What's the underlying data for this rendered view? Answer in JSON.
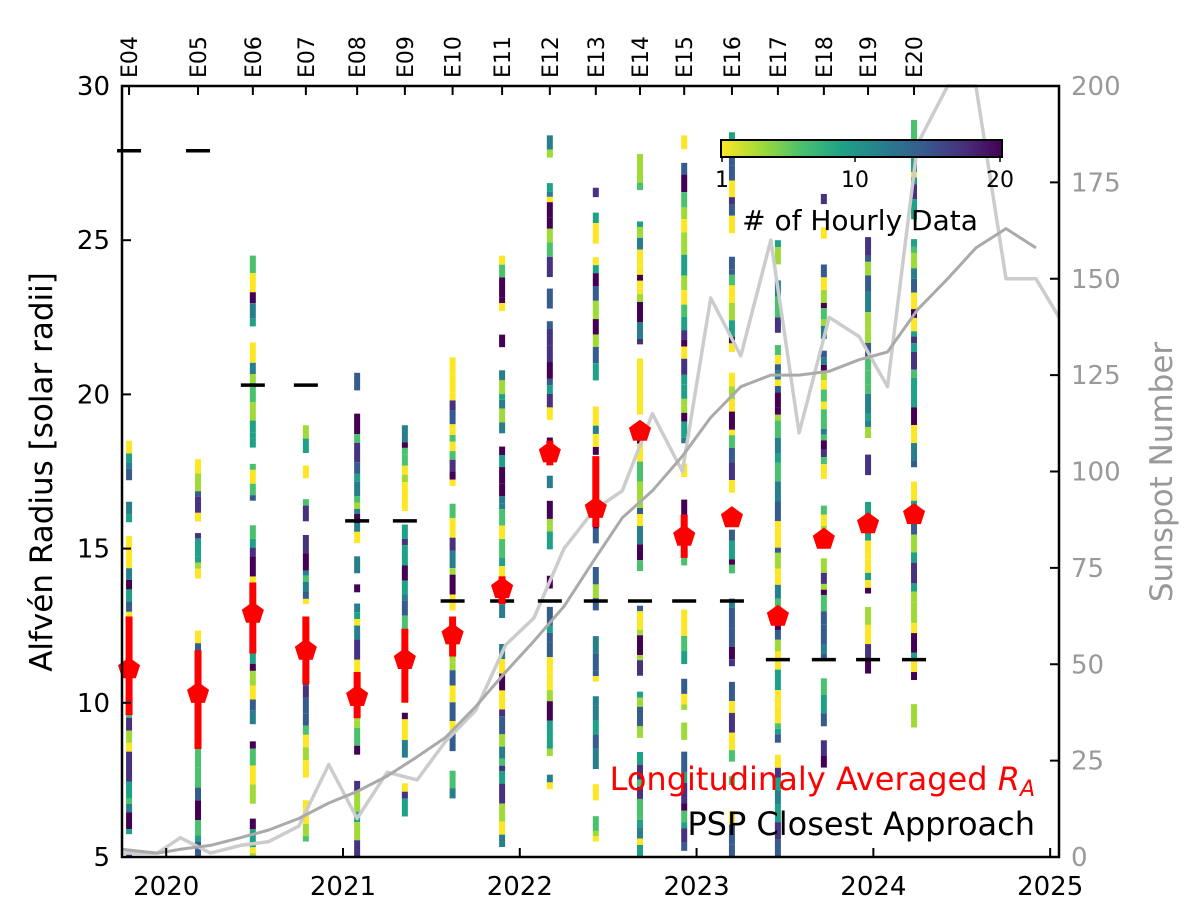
{
  "chart_data": {
    "type": "errorbar",
    "x_axis": {
      "range": [
        2019.75,
        2025.05
      ],
      "ticks": [
        2020,
        2021,
        2022,
        2023,
        2024,
        2025
      ],
      "tick_labels": [
        "2020",
        "2021",
        "2022",
        "2023",
        "2024",
        "2025"
      ]
    },
    "y_axis_left": {
      "label": "Alfvén Radius [solar radii]",
      "range": [
        5,
        30
      ],
      "ticks": [
        5,
        10,
        15,
        20,
        25,
        30
      ],
      "tick_labels": [
        "5",
        "10",
        "15",
        "20",
        "25",
        "30"
      ]
    },
    "y_axis_right": {
      "label": "Sunspot Number",
      "range": [
        0,
        200
      ],
      "ticks": [
        0,
        25,
        50,
        75,
        100,
        125,
        150,
        175,
        200
      ],
      "tick_labels": [
        "0",
        "25",
        "50",
        "75",
        "100",
        "125",
        "150",
        "175",
        "200"
      ],
      "color": "#999999"
    },
    "encounters": [
      {
        "label": "E04",
        "x": 2019.79,
        "ra": 11.1,
        "err_lo": 9.6,
        "err_hi": 12.8,
        "closest_approach": 27.9,
        "strip_lo": 5.0,
        "strip_hi": 18.5
      },
      {
        "label": "E05",
        "x": 2020.18,
        "ra": 10.3,
        "err_lo": 8.5,
        "err_hi": 11.7,
        "closest_approach": 27.9,
        "strip_lo": 5.0,
        "strip_hi": 17.9
      },
      {
        "label": "E06",
        "x": 2020.49,
        "ra": 12.9,
        "err_lo": 11.6,
        "err_hi": 13.9,
        "closest_approach": 20.3,
        "strip_lo": 5.0,
        "strip_hi": 24.5
      },
      {
        "label": "E07",
        "x": 2020.79,
        "ra": 11.7,
        "err_lo": 10.6,
        "err_hi": 12.8,
        "closest_approach": 20.3,
        "strip_lo": 5.0,
        "strip_hi": 19.0
      },
      {
        "label": "E08",
        "x": 2021.08,
        "ra": 10.2,
        "err_lo": 9.5,
        "err_hi": 11.0,
        "closest_approach": 15.9,
        "strip_lo": 5.0,
        "strip_hi": 20.7
      },
      {
        "label": "E09",
        "x": 2021.35,
        "ra": 11.4,
        "err_lo": 10.0,
        "err_hi": 12.4,
        "closest_approach": 15.9,
        "strip_lo": 5.8,
        "strip_hi": 19.0
      },
      {
        "label": "E10",
        "x": 2021.62,
        "ra": 12.2,
        "err_lo": 11.5,
        "err_hi": 12.8,
        "closest_approach": 13.3,
        "strip_lo": 6.9,
        "strip_hi": 21.2
      },
      {
        "label": "E11",
        "x": 2021.9,
        "ra": 13.7,
        "err_lo": 13.2,
        "err_hi": 14.1,
        "closest_approach": 13.3,
        "strip_lo": 5.0,
        "strip_hi": 24.5
      },
      {
        "label": "E12",
        "x": 2022.17,
        "ra": 18.1,
        "err_lo": 17.7,
        "err_hi": 18.5,
        "closest_approach": 13.3,
        "strip_lo": 7.2,
        "strip_hi": 28.4
      },
      {
        "label": "E13",
        "x": 2022.43,
        "ra": 16.3,
        "err_lo": 15.7,
        "err_hi": 18.0,
        "closest_approach": 13.3,
        "strip_lo": 5.5,
        "strip_hi": 26.7
      },
      {
        "label": "E14",
        "x": 2022.68,
        "ra": 18.8,
        "err_lo": 18.6,
        "err_hi": 19.0,
        "closest_approach": 13.3,
        "strip_lo": 5.0,
        "strip_hi": 27.8
      },
      {
        "label": "E15",
        "x": 2022.93,
        "ra": 15.4,
        "err_lo": 14.7,
        "err_hi": 16.1,
        "closest_approach": 13.3,
        "strip_lo": 5.2,
        "strip_hi": 28.4
      },
      {
        "label": "E16",
        "x": 2023.2,
        "ra": 16.0,
        "err_lo": 15.7,
        "err_hi": 16.3,
        "closest_approach": 13.3,
        "strip_lo": 5.0,
        "strip_hi": 28.5
      },
      {
        "label": "E17",
        "x": 2023.46,
        "ra": 12.8,
        "err_lo": 12.5,
        "err_hi": 13.1,
        "closest_approach": 11.4,
        "strip_lo": 5.0,
        "strip_hi": 25.0
      },
      {
        "label": "E18",
        "x": 2023.72,
        "ra": 15.3,
        "err_lo": 15.0,
        "err_hi": 15.6,
        "closest_approach": 11.4,
        "strip_lo": 7.9,
        "strip_hi": 26.5
      },
      {
        "label": "E19",
        "x": 2023.97,
        "ra": 15.8,
        "err_lo": 15.5,
        "err_hi": 16.1,
        "closest_approach": 11.4,
        "strip_lo": 10.3,
        "strip_hi": 25.1
      },
      {
        "label": "E20",
        "x": 2024.23,
        "ra": 16.1,
        "err_lo": 15.8,
        "err_hi": 16.4,
        "closest_approach": 11.4,
        "strip_lo": 9.2,
        "strip_hi": 28.9
      }
    ],
    "sunspot_monthly": {
      "color": "#cccccc",
      "x": [
        2019.75,
        2019.95,
        2020.08,
        2020.25,
        2020.42,
        2020.58,
        2020.75,
        2020.92,
        2021.08,
        2021.25,
        2021.42,
        2021.58,
        2021.75,
        2021.92,
        2022.08,
        2022.25,
        2022.42,
        2022.58,
        2022.75,
        2022.92,
        2023.08,
        2023.25,
        2023.42,
        2023.58,
        2023.75,
        2023.92,
        2024.08,
        2024.25,
        2024.42,
        2024.58,
        2024.75,
        2024.92,
        2025.05
      ],
      "y": [
        1,
        1,
        5,
        1,
        3,
        4,
        8,
        24,
        10,
        22,
        20,
        30,
        38,
        55,
        62,
        80,
        90,
        95,
        115,
        100,
        145,
        130,
        160,
        110,
        140,
        135,
        122,
        185,
        205,
        215,
        150,
        150,
        140
      ]
    },
    "sunspot_smoothed": {
      "color": "#aaaaaa",
      "x": [
        2019.75,
        2019.95,
        2020.08,
        2020.25,
        2020.42,
        2020.58,
        2020.75,
        2020.92,
        2021.08,
        2021.25,
        2021.42,
        2021.58,
        2021.75,
        2021.92,
        2022.08,
        2022.25,
        2022.42,
        2022.58,
        2022.75,
        2022.92,
        2023.08,
        2023.25,
        2023.42,
        2023.58,
        2023.75,
        2023.92,
        2024.08,
        2024.25,
        2024.42,
        2024.58,
        2024.75,
        2024.92
      ],
      "y": [
        2,
        1,
        2,
        3,
        5,
        7,
        10,
        14,
        17,
        21,
        26,
        31,
        39,
        48,
        56,
        65,
        77,
        88,
        95,
        104,
        114,
        122,
        125,
        125,
        126,
        129,
        131,
        142,
        150,
        158,
        163,
        158
      ]
    },
    "colorbar": {
      "label": "# of Hourly Data",
      "tick_labels": [
        "1",
        "10",
        "20"
      ],
      "colors": [
        "#fde725",
        "#a0da39",
        "#4ac16d",
        "#1fa187",
        "#277f8e",
        "#365c8d",
        "#46327e",
        "#440154"
      ]
    },
    "legend": [
      {
        "label": "Longitudinaly Averaged ",
        "label_math": "R",
        "label_sub": "A",
        "color": "#ff0000"
      },
      {
        "label": "PSP Closest Approach",
        "color": "#000000"
      }
    ]
  }
}
